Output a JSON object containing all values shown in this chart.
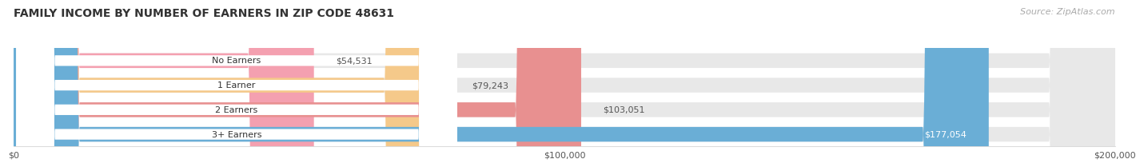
{
  "title": "FAMILY INCOME BY NUMBER OF EARNERS IN ZIP CODE 48631",
  "source": "Source: ZipAtlas.com",
  "categories": [
    "No Earners",
    "1 Earner",
    "2 Earners",
    "3+ Earners"
  ],
  "values": [
    54531,
    79243,
    103051,
    177054
  ],
  "bar_colors": [
    "#f4a0b0",
    "#f5c98a",
    "#e89090",
    "#6aaed6"
  ],
  "bar_bg_color": "#e8e8e8",
  "label_bg_color": "#ffffff",
  "max_value": 200000,
  "tick_values": [
    0,
    100000,
    200000
  ],
  "tick_labels": [
    "$0",
    "$100,000",
    "$200,000"
  ],
  "title_fontsize": 10,
  "source_fontsize": 8,
  "bar_label_fontsize": 8,
  "category_fontsize": 8,
  "value_color_last": "#ffffff",
  "background_color": "#ffffff"
}
